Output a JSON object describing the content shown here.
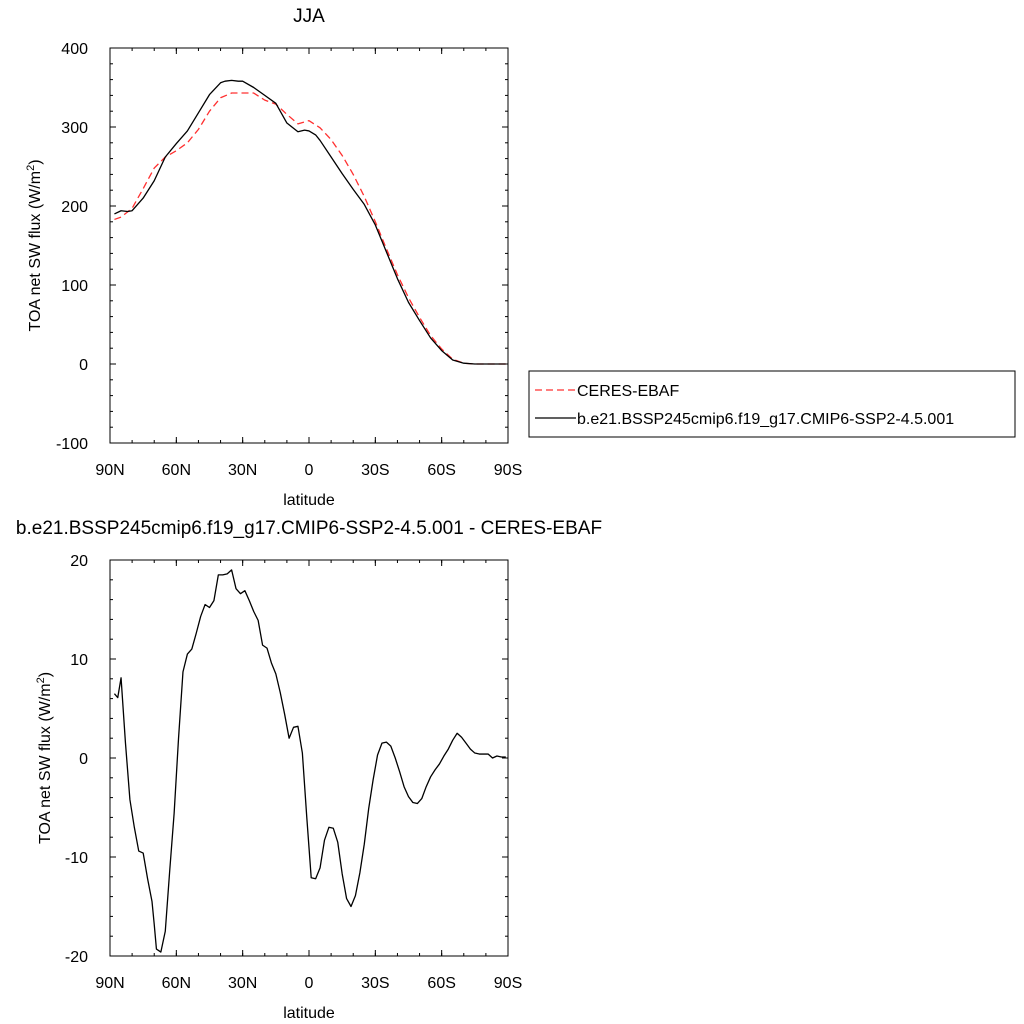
{
  "chart_data": [
    {
      "type": "line",
      "title": "JJA",
      "xlabel": "latitude",
      "ylabel": "TOA net SW flux (W/m",
      "ylabel_sup": "2",
      "ylabel_close": ")",
      "xlim": [
        90,
        -90
      ],
      "ylim": [
        -100,
        400
      ],
      "x_ticks": [
        {
          "value": 90,
          "label": "90N"
        },
        {
          "value": 60,
          "label": "60N"
        },
        {
          "value": 30,
          "label": "30N"
        },
        {
          "value": 0,
          "label": "0"
        },
        {
          "value": -30,
          "label": "30S"
        },
        {
          "value": -60,
          "label": "60S"
        },
        {
          "value": -90,
          "label": "90S"
        }
      ],
      "y_ticks": [
        {
          "value": 400,
          "label": "400"
        },
        {
          "value": 300,
          "label": "300"
        },
        {
          "value": 200,
          "label": "200"
        },
        {
          "value": 100,
          "label": "100"
        },
        {
          "value": 0,
          "label": "0"
        },
        {
          "value": -100,
          "label": "-100"
        }
      ],
      "legend_position": "right",
      "series": [
        {
          "name": "CERES-EBAF",
          "color": "#ff3030",
          "style": "dashed",
          "x": [
            88,
            85,
            80,
            75,
            70,
            65,
            60,
            55,
            50,
            45,
            40,
            35,
            30,
            25,
            20,
            15,
            10,
            5,
            0,
            -5,
            -10,
            -15,
            -20,
            -25,
            -30,
            -35,
            -40,
            -45,
            -50,
            -55,
            -60,
            -65,
            -70,
            -75,
            -80,
            -85,
            -89
          ],
          "y": [
            183,
            186,
            197,
            222,
            248,
            262,
            270,
            280,
            297,
            320,
            337,
            343,
            343,
            343,
            334,
            329,
            316,
            304,
            308,
            299,
            284,
            264,
            240,
            212,
            180,
            146,
            113,
            84,
            59,
            36,
            19,
            6,
            1,
            0,
            0,
            0,
            0
          ]
        },
        {
          "name": "b.e21.BSSP245cmip6.f19_g17.CMIP6-SSP2-4.5.001",
          "color": "#000000",
          "style": "solid",
          "x": [
            88,
            85,
            82,
            80,
            75,
            70,
            65,
            60,
            55,
            50,
            45,
            40,
            38,
            35,
            32,
            30,
            25,
            20,
            15,
            10,
            5,
            2,
            0,
            -3,
            -5,
            -10,
            -15,
            -20,
            -25,
            -30,
            -35,
            -40,
            -45,
            -50,
            -55,
            -60,
            -65,
            -70,
            -75,
            -80,
            -85,
            -89
          ],
          "y": [
            190,
            194,
            193,
            194,
            210,
            232,
            262,
            279,
            295,
            318,
            341,
            356,
            358,
            359,
            358,
            358,
            350,
            340,
            330,
            305,
            294,
            296,
            295,
            290,
            283,
            262,
            241,
            221,
            202,
            176,
            142,
            108,
            78,
            55,
            33,
            17,
            5,
            1,
            0,
            0,
            0,
            0
          ]
        }
      ]
    },
    {
      "type": "line",
      "title": "b.e21.BSSP245cmip6.f19_g17.CMIP6-SSP2-4.5.001 - CERES-EBAF",
      "xlabel": "latitude",
      "ylabel": "TOA net SW flux (W/m",
      "ylabel_sup": "2",
      "ylabel_close": ")",
      "xlim": [
        90,
        -90
      ],
      "ylim": [
        -20,
        20
      ],
      "x_ticks": [
        {
          "value": 90,
          "label": "90N"
        },
        {
          "value": 60,
          "label": "60N"
        },
        {
          "value": 30,
          "label": "30N"
        },
        {
          "value": 0,
          "label": "0"
        },
        {
          "value": -30,
          "label": "30S"
        },
        {
          "value": -60,
          "label": "60S"
        },
        {
          "value": -90,
          "label": "90S"
        }
      ],
      "y_ticks": [
        {
          "value": 20,
          "label": "20"
        },
        {
          "value": 10,
          "label": "10"
        },
        {
          "value": 0,
          "label": "0"
        },
        {
          "value": -10,
          "label": "-10"
        },
        {
          "value": -20,
          "label": "-20"
        }
      ],
      "series": [
        {
          "color": "#000000",
          "style": "solid",
          "x": [
            88,
            86.5,
            85,
            83,
            81,
            79,
            77,
            75,
            73,
            71,
            70,
            69,
            67,
            65,
            63,
            61,
            59,
            57,
            55,
            53,
            51,
            49,
            47,
            45,
            43,
            41,
            39,
            37,
            35,
            33,
            31,
            29,
            27,
            25,
            23,
            21,
            19,
            17,
            15,
            13,
            11,
            9,
            7,
            5,
            3,
            1,
            -1,
            -3,
            -5,
            -7,
            -9,
            -11,
            -13,
            -15,
            -17,
            -19,
            -21,
            -23,
            -25,
            -27,
            -29,
            -31,
            -33,
            -35,
            -37,
            -39,
            -41,
            -43,
            -45,
            -47,
            -49,
            -51,
            -53,
            -55,
            -57,
            -59,
            -61,
            -63,
            -65,
            -67,
            -69,
            -71,
            -73,
            -75,
            -77,
            -79,
            -81,
            -83,
            -85,
            -87,
            -89
          ],
          "y": [
            6.5,
            6.1,
            8.1,
            1.5,
            -4.2,
            -7.0,
            -9.4,
            -9.6,
            -12.2,
            -14.5,
            -16.8,
            -19.3,
            -19.6,
            -17.5,
            -11.4,
            -5.6,
            2.0,
            8.7,
            10.5,
            11.0,
            12.6,
            14.3,
            15.5,
            15.2,
            15.9,
            18.5,
            18.5,
            18.6,
            19.0,
            17.1,
            16.6,
            16.9,
            15.9,
            14.8,
            13.9,
            11.4,
            11.1,
            9.6,
            8.5,
            6.6,
            4.4,
            2.0,
            3.1,
            3.2,
            0.5,
            -6.0,
            -12.1,
            -12.2,
            -11.1,
            -8.3,
            -7.0,
            -7.1,
            -8.5,
            -11.7,
            -14.2,
            -15.0,
            -13.9,
            -11.6,
            -8.7,
            -5.1,
            -2.2,
            0.3,
            1.5,
            1.6,
            1.2,
            0.0,
            -1.4,
            -2.9,
            -3.9,
            -4.5,
            -4.6,
            -4.1,
            -2.9,
            -1.9,
            -1.2,
            -0.6,
            0.2,
            0.9,
            1.8,
            2.5,
            2.1,
            1.5,
            0.9,
            0.5,
            0.4,
            0.4,
            0.4,
            0.0,
            0.2,
            0.1,
            0.1
          ]
        }
      ]
    }
  ]
}
